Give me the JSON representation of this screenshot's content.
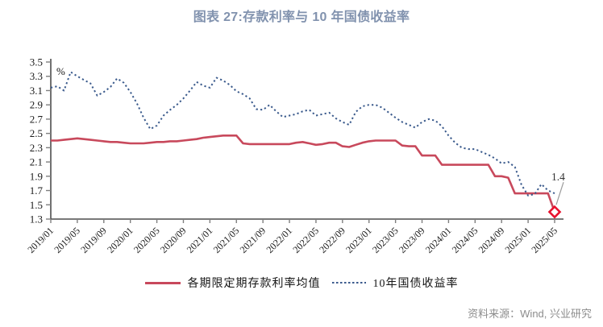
{
  "title": "图表 27:存款利率与 10 年国债收益率",
  "source": "资料来源：Wind, 兴业研究",
  "colors": {
    "title": "#8192AE",
    "deposit_line": "#C8495C",
    "bond_line": "#3A5A8C",
    "marker": "#E8112D",
    "leader": "#9B9B9B"
  },
  "axis": {
    "unit_label": "%"
  },
  "legend": [
    {
      "label": "各期限定期存款利率均值",
      "style": "solid",
      "color": "#C8495C"
    },
    {
      "label": "10年国债收益率",
      "style": "dotted",
      "color": "#3A5A8C"
    }
  ],
  "chart_data": {
    "type": "line",
    "title": "图表 27:存款利率与 10 年国债收益率",
    "ylabel": "%",
    "ylim": [
      1.3,
      3.5
    ],
    "grid": false,
    "legend_position": "bottom",
    "y_ticks": [
      3.5,
      3.3,
      3.1,
      2.9,
      2.7,
      2.5,
      2.3,
      2.1,
      1.9,
      1.7,
      1.5,
      1.3
    ],
    "x_tick_labels": [
      "2019/01",
      "2019/05",
      "2019/09",
      "2020/01",
      "2020/05",
      "2020/09",
      "2021/01",
      "2021/05",
      "2021/09",
      "2022/01",
      "2022/05",
      "2022/09",
      "2023/01",
      "2023/05",
      "2023/09",
      "2024/01",
      "2024/05",
      "2024/09",
      "2025/01",
      "2025/05"
    ],
    "x_tick_every_months": 4,
    "x": [
      "2019/01",
      "2019/02",
      "2019/03",
      "2019/04",
      "2019/05",
      "2019/06",
      "2019/07",
      "2019/08",
      "2019/09",
      "2019/10",
      "2019/11",
      "2019/12",
      "2020/01",
      "2020/02",
      "2020/03",
      "2020/04",
      "2020/05",
      "2020/06",
      "2020/07",
      "2020/08",
      "2020/09",
      "2020/10",
      "2020/11",
      "2020/12",
      "2021/01",
      "2021/02",
      "2021/03",
      "2021/04",
      "2021/05",
      "2021/06",
      "2021/07",
      "2021/08",
      "2021/09",
      "2021/10",
      "2021/11",
      "2021/12",
      "2022/01",
      "2022/02",
      "2022/03",
      "2022/04",
      "2022/05",
      "2022/06",
      "2022/07",
      "2022/08",
      "2022/09",
      "2022/10",
      "2022/11",
      "2022/12",
      "2023/01",
      "2023/02",
      "2023/03",
      "2023/04",
      "2023/05",
      "2023/06",
      "2023/07",
      "2023/08",
      "2023/09",
      "2023/10",
      "2023/11",
      "2023/12",
      "2024/01",
      "2024/02",
      "2024/03",
      "2024/04",
      "2024/05",
      "2024/06",
      "2024/07",
      "2024/08",
      "2024/09",
      "2024/10",
      "2024/11",
      "2024/12",
      "2025/01",
      "2025/02",
      "2025/03",
      "2025/04",
      "2025/05"
    ],
    "series": [
      {
        "name": "各期限定期存款利率均值",
        "style": "solid",
        "color": "#C8495C",
        "values": [
          2.4,
          2.4,
          2.41,
          2.42,
          2.43,
          2.42,
          2.41,
          2.4,
          2.39,
          2.38,
          2.38,
          2.37,
          2.36,
          2.36,
          2.36,
          2.37,
          2.38,
          2.38,
          2.39,
          2.39,
          2.4,
          2.41,
          2.42,
          2.44,
          2.45,
          2.46,
          2.47,
          2.47,
          2.47,
          2.36,
          2.35,
          2.35,
          2.35,
          2.35,
          2.35,
          2.35,
          2.35,
          2.37,
          2.38,
          2.36,
          2.34,
          2.35,
          2.37,
          2.37,
          2.32,
          2.31,
          2.34,
          2.37,
          2.39,
          2.4,
          2.4,
          2.4,
          2.4,
          2.33,
          2.32,
          2.32,
          2.19,
          2.19,
          2.19,
          2.06,
          2.06,
          2.06,
          2.06,
          2.06,
          2.06,
          2.06,
          2.06,
          1.9,
          1.9,
          1.88,
          1.66,
          1.66,
          1.66,
          1.66,
          1.66,
          1.66,
          1.4
        ]
      },
      {
        "name": "10年国债收益率",
        "style": "dotted",
        "color": "#3A5A8C",
        "values": [
          3.14,
          3.16,
          3.1,
          3.36,
          3.3,
          3.25,
          3.2,
          3.03,
          3.08,
          3.15,
          3.27,
          3.21,
          3.08,
          2.92,
          2.72,
          2.56,
          2.61,
          2.75,
          2.83,
          2.9,
          2.99,
          3.1,
          3.22,
          3.17,
          3.14,
          3.28,
          3.24,
          3.18,
          3.09,
          3.05,
          2.99,
          2.84,
          2.83,
          2.9,
          2.81,
          2.73,
          2.75,
          2.77,
          2.81,
          2.83,
          2.75,
          2.77,
          2.79,
          2.71,
          2.66,
          2.62,
          2.8,
          2.88,
          2.9,
          2.9,
          2.86,
          2.79,
          2.72,
          2.66,
          2.62,
          2.58,
          2.66,
          2.7,
          2.68,
          2.6,
          2.47,
          2.37,
          2.3,
          2.28,
          2.28,
          2.24,
          2.2,
          2.15,
          2.08,
          2.1,
          2.03,
          1.78,
          1.63,
          1.65,
          1.79,
          1.7,
          1.66
        ]
      }
    ],
    "end_annotation": {
      "series": "各期限定期存款利率均值",
      "x": "2025/05",
      "value": 1.4,
      "label": "1.4",
      "marker": "diamond",
      "marker_color": "#E8112D"
    }
  }
}
